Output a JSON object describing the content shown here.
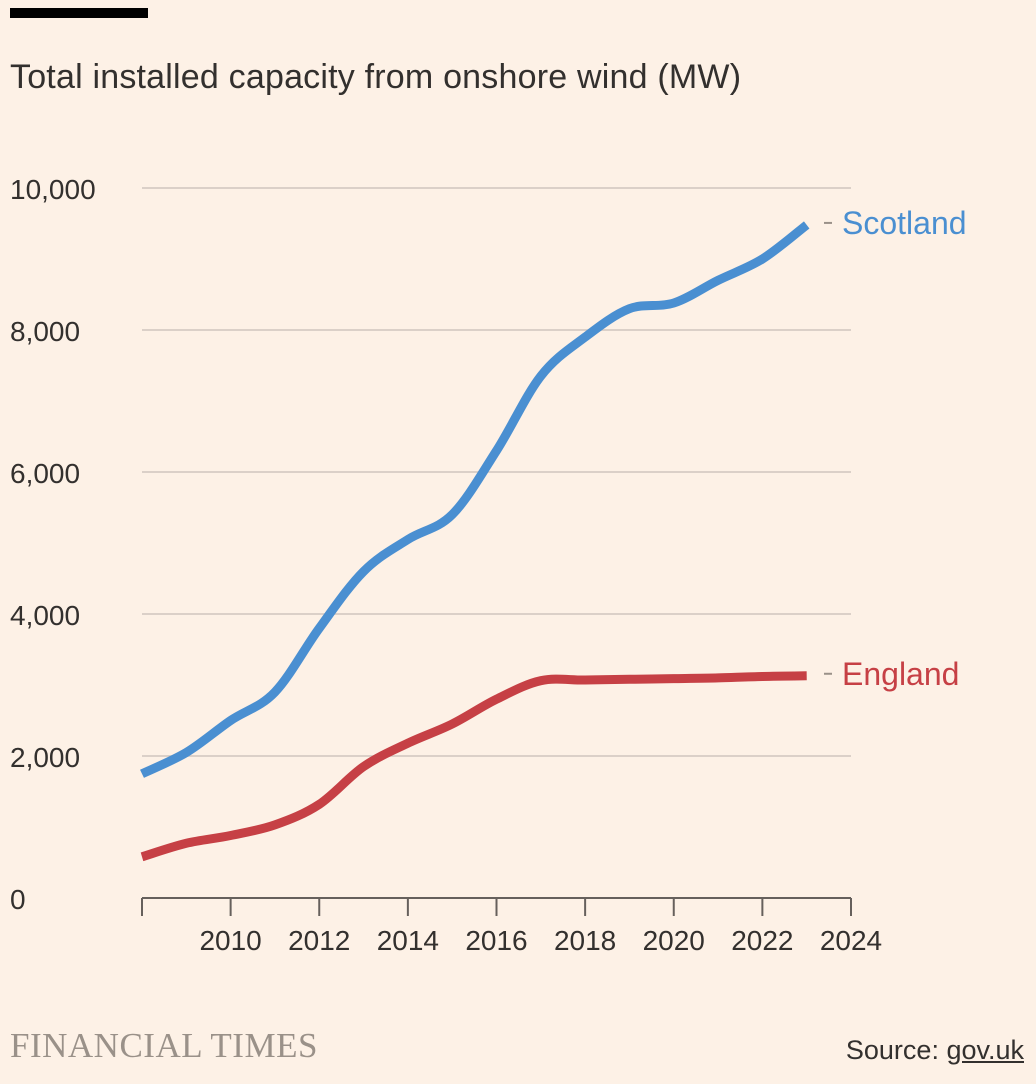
{
  "header": {
    "title": "Total installed capacity from onshore wind (MW)"
  },
  "footer": {
    "brand": "FINANCIAL TIMES",
    "source_prefix": "Source: ",
    "source_link": "gov.uk"
  },
  "colors": {
    "background": "#fdf1e6",
    "scotland": "#4a8fd1",
    "england": "#c64045",
    "grid": "#d0c6bd",
    "text": "#33302e",
    "muted": "#9a9189"
  },
  "chart_data": {
    "type": "line",
    "title": "Total installed capacity from onshore wind (MW)",
    "xlabel": "",
    "ylabel": "",
    "xlim": [
      2008,
      2024
    ],
    "ylim": [
      0,
      10000
    ],
    "x_ticks": [
      2010,
      2012,
      2014,
      2016,
      2018,
      2020,
      2022,
      2024
    ],
    "y_ticks": [
      0,
      2000,
      4000,
      6000,
      8000,
      10000
    ],
    "y_tick_labels": [
      "0",
      "2,000",
      "4,000",
      "6,000",
      "8,000",
      "10,000"
    ],
    "grid": true,
    "series": [
      {
        "name": "Scotland",
        "x": [
          2008,
          2009,
          2010,
          2011,
          2012,
          2013,
          2014,
          2015,
          2016,
          2017,
          2018,
          2019,
          2020,
          2021,
          2022,
          2023
        ],
        "values": [
          1750,
          2050,
          2500,
          2900,
          3800,
          4600,
          5050,
          5400,
          6300,
          7350,
          7900,
          8300,
          8380,
          8700,
          9000,
          9480
        ]
      },
      {
        "name": "England",
        "x": [
          2008,
          2009,
          2010,
          2011,
          2012,
          2013,
          2014,
          2015,
          2016,
          2017,
          2018,
          2019,
          2020,
          2021,
          2022,
          2023
        ],
        "values": [
          580,
          770,
          880,
          1030,
          1320,
          1850,
          2180,
          2450,
          2800,
          3060,
          3070,
          3080,
          3090,
          3100,
          3120,
          3130
        ]
      }
    ]
  }
}
